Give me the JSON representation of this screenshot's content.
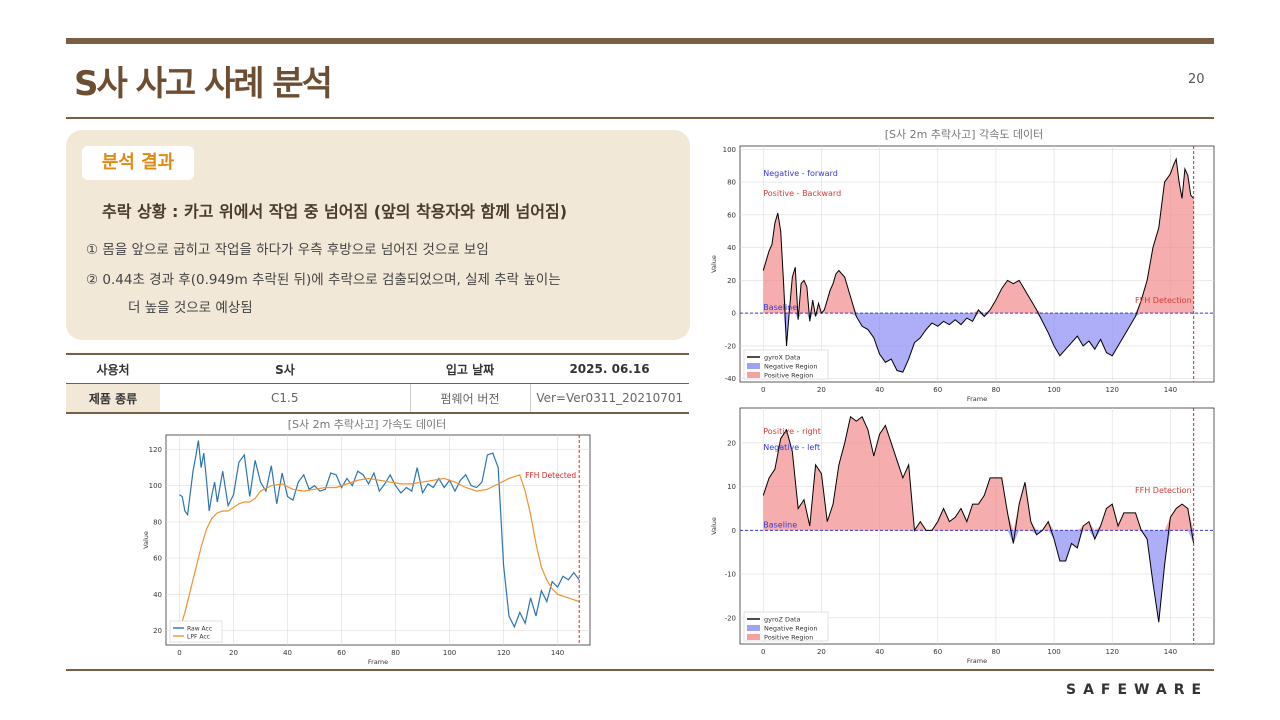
{
  "page": {
    "title": "S사 사고 사례 분석",
    "page_number": "20",
    "logo": "SAFEWARE"
  },
  "card": {
    "badge": "분석 결과",
    "heading": "추락 상황 : 카고 위에서 작업 중 넘어짐 (앞의 착용자와 함께 넘어짐)",
    "lines": [
      "①  몸을 앞으로 굽히고 작업을 하다가 우측 후방으로 넘어진 것으로 보임",
      "②  0.44초 경과 후(0.949m 추락된 뒤)에 추락으로 검출되었으며, 실제 추락 높이는",
      "더 높을 것으로 예상됨"
    ]
  },
  "info_table": {
    "row1": [
      "사용처",
      "S사",
      "입고 날짜",
      "2025. 06.16"
    ],
    "row2": [
      "제품 종류",
      "C1.5",
      "펌웨어 버전",
      "Ver=Ver0311_20210701"
    ]
  },
  "chart_data": [
    {
      "type": "line",
      "title": "[S사 2m 추락사고] 가속도 데이터",
      "xlabel": "Frame",
      "ylabel": "Value",
      "xlim": [
        -5,
        152
      ],
      "ylim": [
        12,
        128
      ],
      "xticks": [
        0,
        20,
        40,
        60,
        80,
        100,
        120,
        140
      ],
      "yticks": [
        20,
        40,
        60,
        80,
        100,
        120
      ],
      "grid": true,
      "legend": "bottom-left",
      "annotation": {
        "text": "FFH Detected",
        "x": 148
      },
      "series": [
        {
          "name": "Raw Acc",
          "color": "#2b74b0",
          "x": [
            0,
            1,
            2,
            3,
            4,
            5,
            6,
            7,
            8,
            9,
            10,
            11,
            12,
            13,
            14,
            16,
            18,
            20,
            22,
            24,
            26,
            28,
            30,
            32,
            34,
            36,
            38,
            40,
            42,
            44,
            46,
            48,
            50,
            52,
            54,
            56,
            58,
            60,
            62,
            64,
            66,
            68,
            70,
            72,
            74,
            76,
            78,
            80,
            82,
            84,
            86,
            88,
            90,
            92,
            94,
            96,
            98,
            100,
            102,
            104,
            106,
            108,
            110,
            112,
            114,
            116,
            118,
            120,
            122,
            124,
            126,
            128,
            130,
            132,
            134,
            136,
            138,
            140,
            142,
            144,
            146,
            148
          ],
          "y": [
            95,
            94,
            86,
            84,
            96,
            108,
            116,
            125,
            110,
            118,
            103,
            86,
            95,
            102,
            91,
            108,
            89,
            95,
            113,
            117,
            94,
            114,
            102,
            97,
            111,
            90,
            107,
            94,
            92,
            102,
            106,
            98,
            100,
            97,
            98,
            107,
            106,
            99,
            104,
            100,
            108,
            106,
            101,
            107,
            97,
            101,
            106,
            100,
            96,
            99,
            97,
            110,
            96,
            101,
            99,
            104,
            99,
            103,
            97,
            103,
            106,
            100,
            99,
            102,
            117,
            118,
            110,
            56,
            28,
            22,
            30,
            24,
            38,
            28,
            42,
            36,
            47,
            44,
            50,
            48,
            52,
            48
          ]
        },
        {
          "name": "LPF Acc",
          "color": "#f0922e",
          "x": [
            0,
            2,
            4,
            6,
            8,
            10,
            12,
            14,
            16,
            18,
            20,
            22,
            24,
            26,
            28,
            30,
            34,
            38,
            42,
            46,
            50,
            54,
            58,
            62,
            66,
            70,
            74,
            78,
            82,
            86,
            90,
            94,
            98,
            102,
            106,
            110,
            114,
            118,
            122,
            126,
            128,
            130,
            132,
            134,
            136,
            138,
            140,
            144,
            148
          ],
          "y": [
            20,
            30,
            42,
            54,
            66,
            76,
            82,
            85,
            86,
            86,
            88,
            90,
            91,
            91,
            93,
            97,
            100,
            101,
            98,
            97,
            98,
            99,
            99,
            101,
            103,
            104,
            103,
            102,
            101,
            101,
            102,
            103,
            104,
            102,
            99,
            97,
            98,
            101,
            104,
            106,
            97,
            84,
            68,
            55,
            48,
            43,
            40,
            38,
            36
          ]
        }
      ]
    },
    {
      "type": "area",
      "title": "[S사 2m 추락사고] 각속도 데이터",
      "xlabel": "Frame",
      "ylabel": "Value",
      "xlim": [
        -8,
        155
      ],
      "ylim": [
        -42,
        102
      ],
      "xticks": [
        0,
        20,
        40,
        60,
        80,
        100,
        120,
        140
      ],
      "yticks": [
        -40,
        -20,
        0,
        20,
        40,
        60,
        80,
        100
      ],
      "grid": true,
      "legend": "bottom-left",
      "annotations": [
        {
          "text": "Negative - forward",
          "color": "#3a3ad0"
        },
        {
          "text": "Positive - Backward",
          "color": "#d53a3a"
        },
        {
          "text": "Baseline",
          "color": "#3a3ad0"
        },
        {
          "text": "FFH Detection",
          "color": "#d53a3a",
          "x": 148
        }
      ],
      "series": [
        {
          "name": "gyroX Data",
          "color": "#000000",
          "x": [
            0,
            1,
            2,
            3,
            4,
            5,
            6,
            7,
            8,
            9,
            10,
            11,
            12,
            13,
            14,
            15,
            16,
            17,
            18,
            19,
            20,
            21,
            22,
            23,
            24,
            25,
            26,
            28,
            30,
            32,
            34,
            36,
            38,
            40,
            42,
            44,
            46,
            48,
            50,
            52,
            54,
            56,
            58,
            60,
            62,
            64,
            66,
            68,
            70,
            72,
            74,
            76,
            78,
            80,
            82,
            84,
            86,
            88,
            90,
            92,
            94,
            96,
            98,
            100,
            102,
            104,
            106,
            108,
            110,
            112,
            114,
            116,
            118,
            120,
            122,
            124,
            126,
            128,
            130,
            132,
            134,
            136,
            138,
            140,
            141,
            142,
            143,
            144,
            145,
            146,
            147,
            148
          ],
          "y": [
            26,
            32,
            38,
            42,
            55,
            61,
            50,
            18,
            -20,
            2,
            22,
            28,
            -4,
            18,
            20,
            16,
            -5,
            8,
            -2,
            6,
            0,
            2,
            8,
            14,
            18,
            24,
            26,
            22,
            10,
            -2,
            -8,
            -10,
            -15,
            -25,
            -30,
            -28,
            -35,
            -36,
            -28,
            -18,
            -15,
            -10,
            -6,
            -8,
            -5,
            -7,
            -4,
            -7,
            -3,
            -5,
            2,
            -2,
            2,
            8,
            15,
            20,
            18,
            20,
            14,
            8,
            2,
            -5,
            -12,
            -20,
            -26,
            -22,
            -18,
            -14,
            -20,
            -17,
            -22,
            -16,
            -24,
            -26,
            -20,
            -14,
            -8,
            -2,
            8,
            20,
            40,
            52,
            80,
            85,
            90,
            94,
            80,
            70,
            88,
            84,
            72,
            70
          ]
        },
        {
          "name": "Negative Region",
          "color": "#8a8af5"
        },
        {
          "name": "Positive Region",
          "color": "#f28a8a"
        }
      ]
    },
    {
      "type": "area",
      "xlabel": "Frame",
      "ylabel": "Value",
      "xlim": [
        -8,
        155
      ],
      "ylim": [
        -26,
        28
      ],
      "xticks": [
        0,
        20,
        40,
        60,
        80,
        100,
        120,
        140
      ],
      "yticks": [
        -20,
        -10,
        0,
        10,
        20
      ],
      "grid": true,
      "legend": "bottom-left",
      "annotations": [
        {
          "text": "Positive - right",
          "color": "#d53a3a"
        },
        {
          "text": "Negative - left",
          "color": "#3a3ad0"
        },
        {
          "text": "Baseline",
          "color": "#3a3ad0"
        },
        {
          "text": "FFH Detection",
          "color": "#d53a3a",
          "x": 148
        }
      ],
      "series": [
        {
          "name": "gyroZ Data",
          "color": "#000000",
          "x": [
            0,
            2,
            4,
            6,
            8,
            10,
            12,
            14,
            16,
            18,
            20,
            22,
            24,
            26,
            28,
            30,
            32,
            34,
            36,
            38,
            40,
            42,
            44,
            46,
            48,
            50,
            52,
            54,
            56,
            58,
            60,
            62,
            64,
            66,
            68,
            70,
            72,
            74,
            76,
            78,
            80,
            82,
            84,
            86,
            88,
            90,
            92,
            94,
            96,
            98,
            100,
            102,
            104,
            106,
            108,
            110,
            112,
            114,
            116,
            118,
            120,
            122,
            124,
            126,
            128,
            130,
            132,
            134,
            136,
            138,
            140,
            142,
            144,
            146,
            148
          ],
          "y": [
            8,
            12,
            14,
            21,
            23,
            18,
            5,
            7,
            1,
            15,
            13,
            2,
            6,
            15,
            20,
            26,
            25,
            26,
            23,
            17,
            22,
            24,
            20,
            16,
            12,
            15,
            0,
            2,
            0,
            0,
            2,
            5,
            2,
            3,
            5,
            2,
            6,
            6,
            8,
            12,
            12,
            12,
            4,
            -3,
            6,
            11,
            2,
            -1,
            0,
            2,
            -2,
            -7,
            -7,
            -3,
            -4,
            1,
            2,
            -2,
            1,
            5,
            6,
            1,
            4,
            4,
            4,
            0,
            -2,
            -12,
            -21,
            -8,
            3,
            5,
            6,
            5,
            -3
          ]
        }
      ]
    }
  ]
}
